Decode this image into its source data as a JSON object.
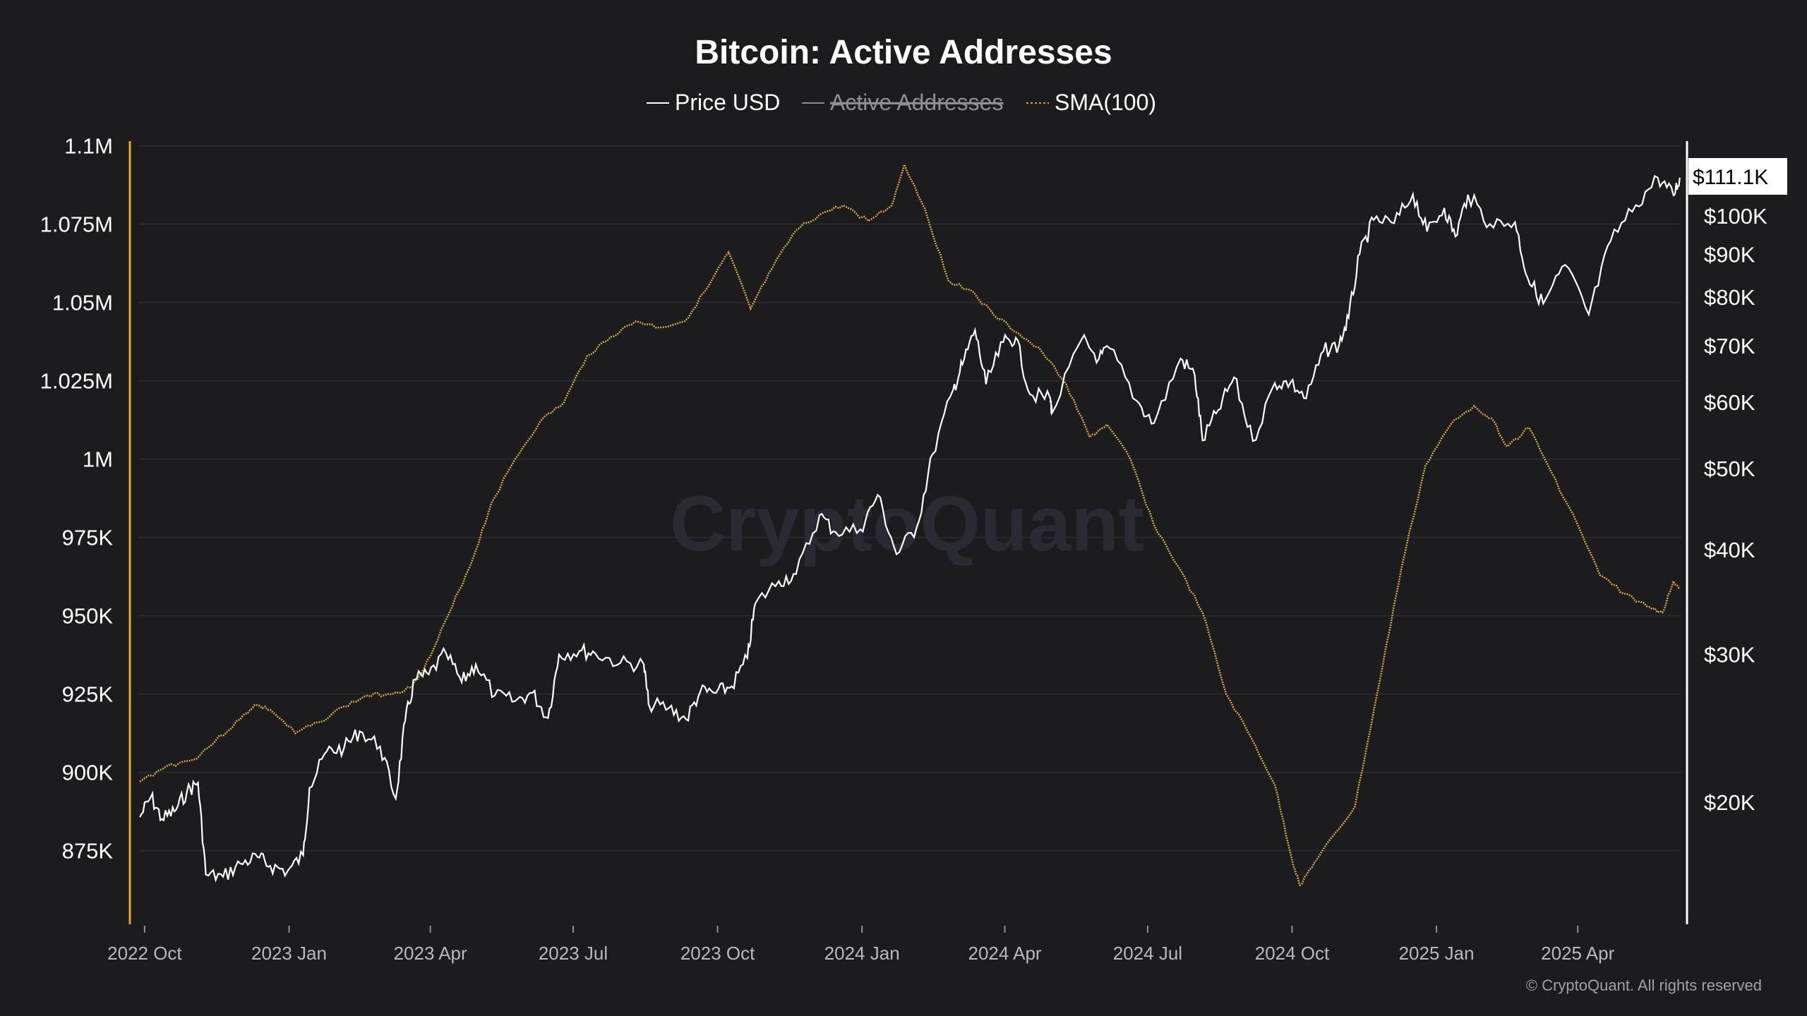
{
  "colors": {
    "background": "#1c1c1e",
    "price": "#ffffff",
    "active_addresses": "#8e8e93",
    "sma": "#d4a53a",
    "left_axis_line": "#e8a827",
    "grid": "#2b2b38"
  },
  "watermark": "CryptoQuant",
  "copyright": "© CryptoQuant. All rights reserved",
  "chart_data": {
    "type": "line",
    "title": "Bitcoin: Active Addresses",
    "legend": [
      {
        "label": "Price USD",
        "color": "#ffffff",
        "style": "solid",
        "disabled": false
      },
      {
        "label": "Active Addresses",
        "color": "#8e8e93",
        "style": "solid",
        "disabled": true
      },
      {
        "label": "SMA(100)",
        "color": "#d4a53a",
        "style": "dotted",
        "disabled": false
      }
    ],
    "legend_position": "top-center",
    "grid": true,
    "x_ticks": [
      "2022 Oct",
      "2023 Jan",
      "2023 Apr",
      "2023 Jul",
      "2023 Oct",
      "2024 Jan",
      "2024 Apr",
      "2024 Jul",
      "2024 Oct",
      "2025 Jan",
      "2025 Apr"
    ],
    "x_range": [
      "2022-09-27",
      "2025-06-06"
    ],
    "left_axis": {
      "ticks": [
        {
          "value": 1100000,
          "label": "1.1M"
        },
        {
          "value": 1075000,
          "label": "1.075M"
        },
        {
          "value": 1050000,
          "label": "1.05M"
        },
        {
          "value": 1025000,
          "label": "1.025M"
        },
        {
          "value": 1000000,
          "label": "1M"
        },
        {
          "value": 975000,
          "label": "975K"
        },
        {
          "value": 950000,
          "label": "950K"
        },
        {
          "value": 925000,
          "label": "925K"
        },
        {
          "value": 900000,
          "label": "900K"
        },
        {
          "value": 875000,
          "label": "875K"
        }
      ],
      "range": [
        851500,
        1101500
      ]
    },
    "right_axis": {
      "scale": "log",
      "ticks": [
        {
          "value": 100000,
          "label": "$100K"
        },
        {
          "value": 90000,
          "label": "$90K"
        },
        {
          "value": 80000,
          "label": "$80K"
        },
        {
          "value": 70000,
          "label": "$70K"
        },
        {
          "value": 60000,
          "label": "$60K"
        },
        {
          "value": 50000,
          "label": "$50K"
        },
        {
          "value": 40000,
          "label": "$40K"
        },
        {
          "value": 30000,
          "label": "$30K"
        },
        {
          "value": 20000,
          "label": "$20K"
        }
      ],
      "current_value_label": "$111.1K",
      "current_value": 111100
    },
    "series": [
      {
        "name": "Price USD",
        "axis": "right",
        "points": [
          [
            "2022-09-28",
            19200
          ],
          [
            "2022-10-05",
            20300
          ],
          [
            "2022-10-12",
            19100
          ],
          [
            "2022-10-20",
            19500
          ],
          [
            "2022-10-28",
            20600
          ],
          [
            "2022-11-04",
            21100
          ],
          [
            "2022-11-09",
            16400
          ],
          [
            "2022-11-20",
            16300
          ],
          [
            "2022-12-01",
            16900
          ],
          [
            "2022-12-12",
            17200
          ],
          [
            "2022-12-20",
            16800
          ],
          [
            "2022-12-31",
            16550
          ],
          [
            "2023-01-10",
            17300
          ],
          [
            "2023-01-14",
            20800
          ],
          [
            "2023-01-25",
            23000
          ],
          [
            "2023-02-05",
            23200
          ],
          [
            "2023-02-15",
            24300
          ],
          [
            "2023-02-28",
            23300
          ],
          [
            "2023-03-10",
            20200
          ],
          [
            "2023-03-16",
            25000
          ],
          [
            "2023-03-22",
            28000
          ],
          [
            "2023-03-31",
            28400
          ],
          [
            "2023-04-11",
            30100
          ],
          [
            "2023-04-21",
            27800
          ],
          [
            "2023-04-30",
            29200
          ],
          [
            "2023-05-12",
            26800
          ],
          [
            "2023-05-25",
            26400
          ],
          [
            "2023-06-05",
            27000
          ],
          [
            "2023-06-15",
            25200
          ],
          [
            "2023-06-22",
            30000
          ],
          [
            "2023-07-05",
            30300
          ],
          [
            "2023-07-15",
            30100
          ],
          [
            "2023-07-31",
            29300
          ],
          [
            "2023-08-15",
            29200
          ],
          [
            "2023-08-18",
            26200
          ],
          [
            "2023-08-31",
            25900
          ],
          [
            "2023-09-11",
            25100
          ],
          [
            "2023-09-20",
            27100
          ],
          [
            "2023-09-30",
            27000
          ],
          [
            "2023-10-10",
            27500
          ],
          [
            "2023-10-20",
            29700
          ],
          [
            "2023-10-25",
            34500
          ],
          [
            "2023-11-09",
            36700
          ],
          [
            "2023-11-20",
            37400
          ],
          [
            "2023-12-05",
            44000
          ],
          [
            "2023-12-15",
            42000
          ],
          [
            "2023-12-31",
            42300
          ],
          [
            "2024-01-11",
            46500
          ],
          [
            "2024-01-23",
            39500
          ],
          [
            "2024-02-05",
            42600
          ],
          [
            "2024-02-15",
            52000
          ],
          [
            "2024-02-28",
            62000
          ],
          [
            "2024-03-05",
            66500
          ],
          [
            "2024-03-13",
            73100
          ],
          [
            "2024-03-20",
            63000
          ],
          [
            "2024-03-31",
            70700
          ],
          [
            "2024-04-08",
            71600
          ],
          [
            "2024-04-17",
            61300
          ],
          [
            "2024-04-30",
            60600
          ],
          [
            "2024-05-01",
            58200
          ],
          [
            "2024-05-20",
            71300
          ],
          [
            "2024-05-31",
            67600
          ],
          [
            "2024-06-07",
            69500
          ],
          [
            "2024-06-24",
            60200
          ],
          [
            "2024-07-05",
            56600
          ],
          [
            "2024-07-22",
            67600
          ],
          [
            "2024-07-31",
            64600
          ],
          [
            "2024-08-05",
            54000
          ],
          [
            "2024-08-15",
            58700
          ],
          [
            "2024-08-25",
            64200
          ],
          [
            "2024-09-06",
            53900
          ],
          [
            "2024-09-20",
            63200
          ],
          [
            "2024-09-30",
            63300
          ],
          [
            "2024-10-10",
            60600
          ],
          [
            "2024-10-21",
            69000
          ],
          [
            "2024-10-31",
            70200
          ],
          [
            "2024-11-06",
            75600
          ],
          [
            "2024-11-13",
            90000
          ],
          [
            "2024-11-22",
            98900
          ],
          [
            "2024-12-05",
            98000
          ],
          [
            "2024-12-17",
            106100
          ],
          [
            "2024-12-26",
            95800
          ],
          [
            "2025-01-06",
            102200
          ],
          [
            "2025-01-13",
            94500
          ],
          [
            "2025-01-21",
            106000
          ],
          [
            "2025-02-04",
            97800
          ],
          [
            "2025-02-20",
            98300
          ],
          [
            "2025-02-28",
            84400
          ],
          [
            "2025-03-10",
            78600
          ],
          [
            "2025-03-24",
            87400
          ],
          [
            "2025-04-08",
            76300
          ],
          [
            "2025-04-22",
            93400
          ],
          [
            "2025-05-08",
            103000
          ],
          [
            "2025-05-22",
            111100
          ],
          [
            "2025-06-01",
            105800
          ],
          [
            "2025-06-05",
            111100
          ]
        ]
      },
      {
        "name": "SMA(100)",
        "axis": "left",
        "points": [
          [
            "2022-09-28",
            897000
          ],
          [
            "2022-10-15",
            902000
          ],
          [
            "2022-11-01",
            904000
          ],
          [
            "2022-11-15",
            910000
          ],
          [
            "2022-12-01",
            917000
          ],
          [
            "2022-12-10",
            921500
          ],
          [
            "2022-12-20",
            920000
          ],
          [
            "2023-01-05",
            912500
          ],
          [
            "2023-01-20",
            916000
          ],
          [
            "2023-02-05",
            921000
          ],
          [
            "2023-02-20",
            924500
          ],
          [
            "2023-03-05",
            925000
          ],
          [
            "2023-03-20",
            927000
          ],
          [
            "2023-04-01",
            937000
          ],
          [
            "2023-04-15",
            953000
          ],
          [
            "2023-04-28",
            968000
          ],
          [
            "2023-05-10",
            986000
          ],
          [
            "2023-05-25",
            1000000
          ],
          [
            "2023-06-10",
            1012000
          ],
          [
            "2023-06-25",
            1018000
          ],
          [
            "2023-07-10",
            1033000
          ],
          [
            "2023-07-25",
            1039000
          ],
          [
            "2023-08-10",
            1044000
          ],
          [
            "2023-08-25",
            1042000
          ],
          [
            "2023-09-10",
            1044000
          ],
          [
            "2023-09-25",
            1055000
          ],
          [
            "2023-10-08",
            1066000
          ],
          [
            "2023-10-22",
            1048000
          ],
          [
            "2023-11-05",
            1061000
          ],
          [
            "2023-11-20",
            1073000
          ],
          [
            "2023-12-05",
            1078000
          ],
          [
            "2023-12-20",
            1081000
          ],
          [
            "2024-01-05",
            1076000
          ],
          [
            "2024-01-20",
            1081000
          ],
          [
            "2024-01-28",
            1094000
          ],
          [
            "2024-02-10",
            1080000
          ],
          [
            "2024-02-25",
            1057000
          ],
          [
            "2024-03-10",
            1054000
          ],
          [
            "2024-03-25",
            1046000
          ],
          [
            "2024-04-10",
            1040000
          ],
          [
            "2024-04-25",
            1034000
          ],
          [
            "2024-05-10",
            1024000
          ],
          [
            "2024-05-25",
            1007000
          ],
          [
            "2024-06-05",
            1011000
          ],
          [
            "2024-06-20",
            1000000
          ],
          [
            "2024-07-05",
            979000
          ],
          [
            "2024-07-20",
            966000
          ],
          [
            "2024-08-05",
            951000
          ],
          [
            "2024-08-20",
            925000
          ],
          [
            "2024-09-05",
            911000
          ],
          [
            "2024-09-20",
            896000
          ],
          [
            "2024-10-01",
            872000
          ],
          [
            "2024-10-06",
            864000
          ],
          [
            "2024-10-15",
            871000
          ],
          [
            "2024-10-31",
            882000
          ],
          [
            "2024-11-10",
            889000
          ],
          [
            "2024-11-25",
            927000
          ],
          [
            "2024-12-10",
            966000
          ],
          [
            "2024-12-25",
            998000
          ],
          [
            "2025-01-10",
            1011000
          ],
          [
            "2025-01-25",
            1017000
          ],
          [
            "2025-02-05",
            1013000
          ],
          [
            "2025-02-15",
            1004000
          ],
          [
            "2025-03-01",
            1010000
          ],
          [
            "2025-03-15",
            996000
          ],
          [
            "2025-04-01",
            979000
          ],
          [
            "2025-04-15",
            963000
          ],
          [
            "2025-05-01",
            957000
          ],
          [
            "2025-05-15",
            953000
          ],
          [
            "2025-05-25",
            951000
          ],
          [
            "2025-06-01",
            961000
          ],
          [
            "2025-06-05",
            959000
          ]
        ]
      }
    ]
  }
}
